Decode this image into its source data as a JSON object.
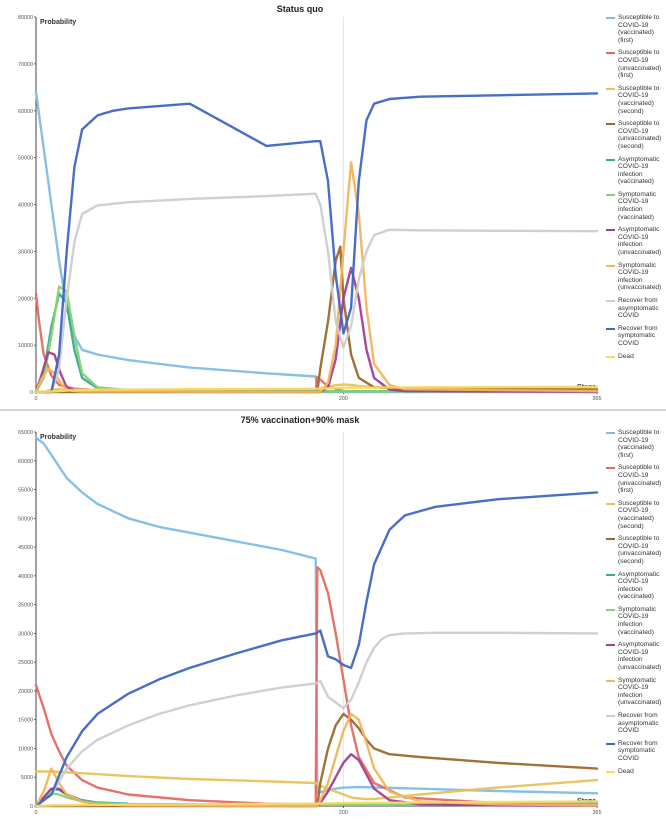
{
  "chart_data": [
    {
      "type": "line",
      "title": "Status quo",
      "ylabel": "Probability",
      "xlabel": "Stage",
      "xlim": [
        0,
        365
      ],
      "ylim": [
        0,
        80000
      ],
      "yticks": [
        "0",
        "10000",
        "20000",
        "30000",
        "40000",
        "50000",
        "60000",
        "70000",
        "80000"
      ],
      "xticks": [
        "0",
        "200",
        "365"
      ],
      "grid": "vertical",
      "legend": "right",
      "series": [
        {
          "name": "Susceptible to COVID-19 (vaccinated) (first)",
          "color": "#7fbde8",
          "x": [
            0,
            5,
            10,
            15,
            20,
            25,
            30,
            40,
            60,
            100,
            150,
            182,
            183,
            200,
            250,
            300,
            365
          ],
          "y": [
            64000,
            52000,
            40000,
            28000,
            18000,
            12000,
            9000,
            8000,
            6800,
            5200,
            4000,
            3300,
            0,
            0,
            0,
            0,
            0
          ]
        },
        {
          "name": "Susceptible to COVID-19 (unvaccinated) (first)",
          "color": "#e26b64",
          "x": [
            0,
            2,
            5,
            10,
            15,
            25,
            40,
            100,
            182,
            183,
            190,
            200,
            365
          ],
          "y": [
            21000,
            15000,
            8000,
            3500,
            1500,
            700,
            400,
            250,
            200,
            3200,
            1200,
            200,
            0
          ]
        },
        {
          "name": "Susceptible to COVID-19 (vaccinated) (second)",
          "color": "#e8c35a",
          "x": [
            0,
            5,
            10,
            15,
            20,
            30,
            60,
            100,
            182,
            185,
            190,
            196,
            200,
            205,
            210,
            220,
            240,
            300,
            365
          ],
          "y": [
            0,
            0,
            500,
            600,
            500,
            500,
            500,
            500,
            500,
            800,
            1200,
            1500,
            1600,
            1500,
            1300,
            1000,
            900,
            850,
            800
          ]
        },
        {
          "name": "Susceptible to COVID-19 (unvaccinated) (second)",
          "color": "#9c6a2c",
          "x": [
            0,
            183,
            185,
            190,
            195,
            198,
            200,
            205,
            210,
            220,
            240,
            365
          ],
          "y": [
            0,
            0,
            5000,
            15000,
            28000,
            31000,
            20000,
            8000,
            3000,
            1000,
            700,
            500
          ]
        },
        {
          "name": "Asymptomatic COVID-19 infection (vaccinated)",
          "color": "#3aa89a",
          "x": [
            0,
            5,
            10,
            15,
            20,
            25,
            30,
            40,
            60,
            100,
            365
          ],
          "y": [
            0,
            4000,
            14000,
            21000,
            19000,
            9000,
            3000,
            800,
            300,
            200,
            100
          ]
        },
        {
          "name": "Symptomatic COVID-19 infection (vaccinated)",
          "color": "#86d36d",
          "x": [
            0,
            5,
            10,
            15,
            20,
            25,
            30,
            40,
            60,
            100,
            365
          ],
          "y": [
            0,
            3000,
            12000,
            22500,
            21500,
            12000,
            4000,
            1000,
            400,
            200,
            100
          ]
        },
        {
          "name": "Asymptomatic COVID-19 infection (unvaccinated)",
          "color": "#a33f92",
          "x": [
            0,
            4,
            8,
            12,
            16,
            20,
            25,
            30,
            185,
            190,
            195,
            200,
            205,
            210,
            215,
            220,
            230,
            240,
            365
          ],
          "y": [
            0,
            4000,
            8500,
            8000,
            4000,
            1000,
            300,
            100,
            0,
            1000,
            7000,
            20000,
            26500,
            20000,
            9000,
            3000,
            500,
            200,
            100
          ]
        },
        {
          "name": "Symptomatic COVID-19 infection (unvaccinated)",
          "color": "#f2b45c",
          "x": [
            0,
            4,
            8,
            12,
            16,
            20,
            25,
            30,
            185,
            190,
            195,
            200,
            205,
            210,
            215,
            220,
            230,
            240,
            365
          ],
          "y": [
            0,
            3000,
            5000,
            4000,
            2000,
            500,
            200,
            100,
            0,
            2000,
            10000,
            30000,
            49000,
            38000,
            18000,
            6000,
            1500,
            600,
            200
          ]
        },
        {
          "name": "Recover from asymptomatic COVID",
          "color": "#cdcdcd",
          "x": [
            0,
            10,
            15,
            20,
            25,
            30,
            40,
            60,
            100,
            150,
            182,
            185,
            190,
            195,
            200,
            205,
            210,
            215,
            220,
            230,
            250,
            300,
            365
          ],
          "y": [
            0,
            0,
            5000,
            20000,
            32000,
            38000,
            39800,
            40500,
            41200,
            41800,
            42300,
            40000,
            30000,
            15000,
            9500,
            14000,
            24000,
            30000,
            33500,
            34600,
            34500,
            34400,
            34300
          ]
        },
        {
          "name": "Recover from symptomatic COVID",
          "color": "#3f66c4",
          "x": [
            0,
            10,
            15,
            20,
            25,
            30,
            40,
            50,
            60,
            100,
            150,
            182,
            185,
            190,
            195,
            200,
            205,
            210,
            215,
            220,
            230,
            250,
            300,
            365
          ],
          "y": [
            0,
            0,
            8000,
            30000,
            48000,
            56000,
            59000,
            60000,
            60500,
            61500,
            52500,
            53500,
            53500,
            45000,
            25000,
            12500,
            18000,
            45000,
            58000,
            61500,
            62500,
            63000,
            63300,
            63700
          ]
        },
        {
          "name": "Dead",
          "color": "#f5d96b",
          "x": [
            0,
            10,
            20,
            40,
            100,
            182,
            200,
            250,
            365
          ],
          "y": [
            0,
            100,
            300,
            500,
            600,
            700,
            900,
            1000,
            1100
          ]
        }
      ]
    },
    {
      "type": "line",
      "title": "75% vaccination+90% mask",
      "ylabel": "Probability",
      "xlabel": "Stage",
      "xlim": [
        0,
        365
      ],
      "ylim": [
        0,
        65000
      ],
      "yticks": [
        "0",
        "5000",
        "10000",
        "15000",
        "20000",
        "25000",
        "30000",
        "35000",
        "40000",
        "45000",
        "50000",
        "55000",
        "60000",
        "65000"
      ],
      "xticks": [
        "0",
        "200",
        "365"
      ],
      "grid": "vertical",
      "legend": "right",
      "series": [
        {
          "name": "Susceptible to COVID-19 (vaccinated) (first)",
          "color": "#7fbde8",
          "x": [
            0,
            5,
            10,
            20,
            30,
            40,
            60,
            80,
            100,
            130,
            160,
            182,
            183,
            185,
            195,
            200,
            210,
            250,
            300,
            365
          ],
          "y": [
            64000,
            63000,
            61000,
            57000,
            54500,
            52500,
            50000,
            48500,
            47500,
            46000,
            44500,
            43000,
            2200,
            2400,
            3000,
            3200,
            3300,
            3000,
            2600,
            2200
          ]
        },
        {
          "name": "Susceptible to COVID-19 (unvaccinated) (first)",
          "color": "#e26b64",
          "x": [
            0,
            5,
            10,
            15,
            20,
            30,
            40,
            60,
            100,
            150,
            182,
            183,
            185,
            190,
            195,
            200,
            205,
            210,
            220,
            240,
            300,
            365
          ],
          "y": [
            21000,
            17000,
            12500,
            9500,
            7000,
            4500,
            3200,
            2000,
            1000,
            400,
            200,
            41500,
            41000,
            37000,
            30000,
            22000,
            14000,
            8500,
            4000,
            1500,
            500,
            300
          ]
        },
        {
          "name": "Susceptible to COVID-19 (vaccinated) (second)",
          "color": "#e8c35a",
          "x": [
            0,
            10,
            30,
            60,
            100,
            150,
            182,
            185,
            190,
            195,
            200,
            205,
            210,
            215,
            220,
            230,
            250,
            300,
            365
          ],
          "y": [
            6000,
            6000,
            5700,
            5200,
            4700,
            4300,
            4000,
            3500,
            3000,
            2500,
            2000,
            1500,
            1300,
            1200,
            1200,
            1500,
            2000,
            3200,
            4500
          ]
        },
        {
          "name": "Susceptible to COVID-19 (unvaccinated) (second)",
          "color": "#9c6a2c",
          "x": [
            0,
            183,
            185,
            190,
            195,
            200,
            205,
            210,
            215,
            220,
            230,
            250,
            300,
            365
          ],
          "y": [
            0,
            0,
            4000,
            10000,
            14000,
            16000,
            15000,
            13500,
            11500,
            10000,
            9000,
            8500,
            7500,
            6500
          ]
        },
        {
          "name": "Asymptomatic COVID-19 infection (vaccinated)",
          "color": "#3aa89a",
          "x": [
            0,
            5,
            10,
            15,
            20,
            30,
            40,
            60,
            100,
            200,
            300,
            365
          ],
          "y": [
            0,
            1500,
            3000,
            2800,
            2000,
            1000,
            600,
            400,
            300,
            300,
            350,
            400
          ]
        },
        {
          "name": "Symptomatic COVID-19 infection (vaccinated)",
          "color": "#86d36d",
          "x": [
            0,
            5,
            10,
            15,
            20,
            30,
            40,
            60,
            100,
            200,
            300,
            365
          ],
          "y": [
            0,
            1200,
            2200,
            2000,
            1500,
            800,
            500,
            300,
            200,
            200,
            250,
            300
          ]
        },
        {
          "name": "Asymptomatic COVID-19 infection (unvaccinated)",
          "color": "#a33f92",
          "x": [
            0,
            5,
            10,
            15,
            20,
            30,
            40,
            60,
            183,
            185,
            190,
            195,
            200,
            205,
            210,
            215,
            220,
            230,
            250,
            300,
            365
          ],
          "y": [
            0,
            1500,
            3000,
            3000,
            2000,
            800,
            300,
            100,
            0,
            500,
            2500,
            5000,
            7500,
            9000,
            8000,
            5500,
            3000,
            1000,
            300,
            100,
            50
          ]
        },
        {
          "name": "Symptomatic COVID-19 infection (unvaccinated)",
          "color": "#f2b45c",
          "x": [
            0,
            5,
            10,
            15,
            20,
            30,
            40,
            60,
            183,
            185,
            190,
            195,
            200,
            205,
            210,
            215,
            220,
            230,
            250,
            300,
            365
          ],
          "y": [
            0,
            2500,
            6500,
            4000,
            2000,
            800,
            300,
            100,
            0,
            1000,
            4000,
            8500,
            13000,
            16000,
            15000,
            11000,
            6500,
            2500,
            800,
            300,
            100
          ]
        },
        {
          "name": "Recover from asymptomatic COVID",
          "color": "#cdcdcd",
          "x": [
            0,
            10,
            20,
            30,
            40,
            60,
            80,
            100,
            130,
            160,
            182,
            185,
            190,
            195,
            200,
            205,
            210,
            215,
            220,
            225,
            230,
            240,
            260,
            300,
            365
          ],
          "y": [
            0,
            2000,
            6500,
            9500,
            11500,
            14000,
            16000,
            17500,
            19200,
            20600,
            21300,
            21700,
            19000,
            18000,
            17000,
            18500,
            21500,
            25000,
            27500,
            29000,
            29700,
            30000,
            30100,
            30100,
            30000
          ]
        },
        {
          "name": "Recover from symptomatic COVID",
          "color": "#3f66c4",
          "x": [
            0,
            10,
            20,
            30,
            40,
            60,
            80,
            100,
            130,
            160,
            182,
            185,
            190,
            195,
            200,
            205,
            210,
            215,
            220,
            230,
            240,
            260,
            300,
            365
          ],
          "y": [
            0,
            2000,
            8500,
            13000,
            16000,
            19500,
            22000,
            24000,
            26500,
            28800,
            30000,
            30500,
            26000,
            25500,
            24500,
            24000,
            28000,
            35500,
            42000,
            48000,
            50500,
            52000,
            53300,
            54500
          ]
        },
        {
          "name": "Dead",
          "color": "#f5d96b",
          "x": [
            0,
            10,
            50,
            100,
            182,
            200,
            250,
            300,
            365
          ],
          "y": [
            0,
            100,
            200,
            300,
            400,
            500,
            600,
            700,
            800
          ]
        }
      ]
    }
  ]
}
